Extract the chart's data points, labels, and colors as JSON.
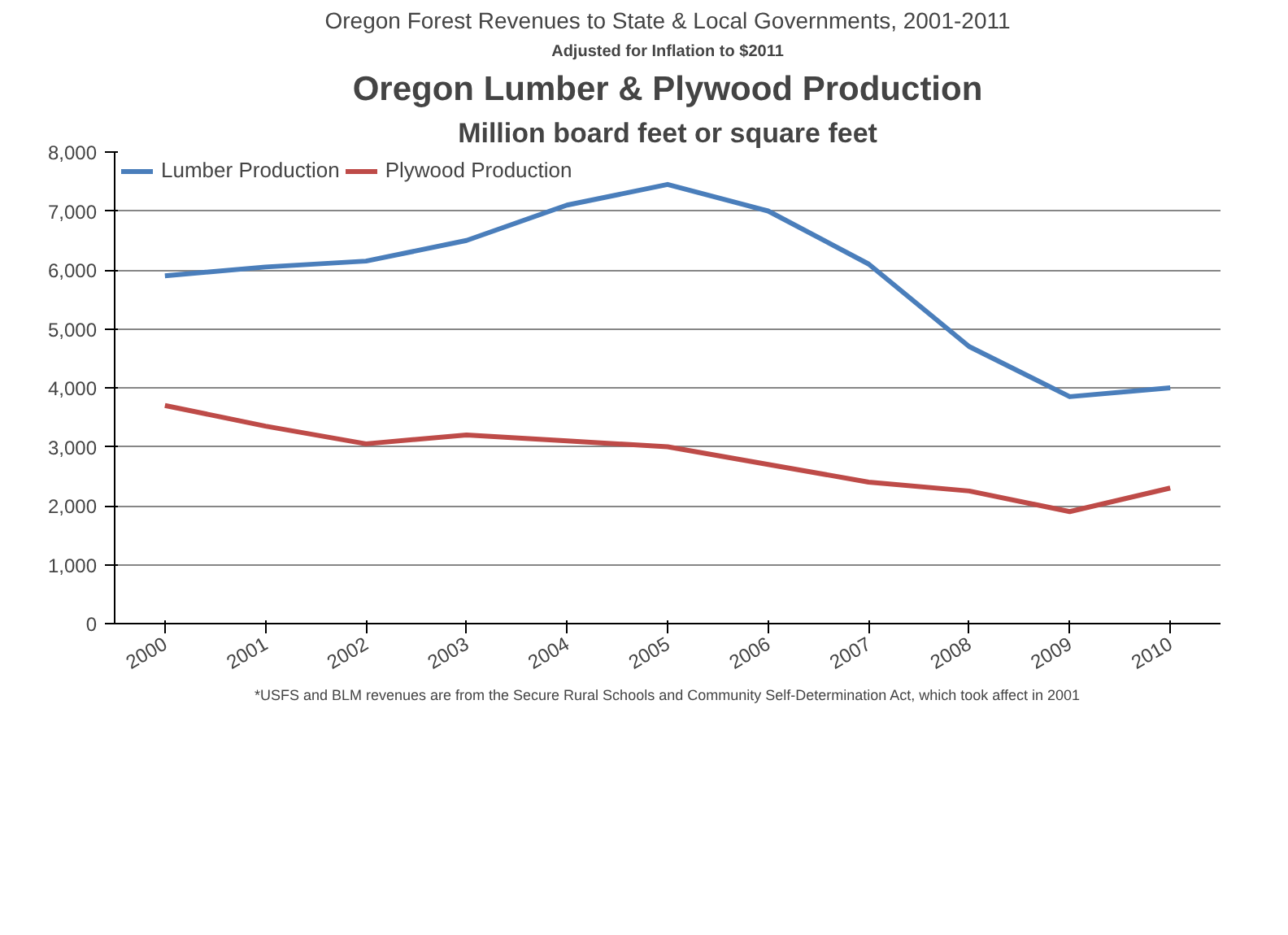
{
  "chart_data": {
    "type": "line",
    "title": "Oregon Lumber & Plywood Production",
    "subtitle": "Million board feet or square feet",
    "categories": [
      "2000",
      "2001",
      "2002",
      "2003",
      "2004",
      "2005",
      "2006",
      "2007",
      "2008",
      "2009",
      "2010"
    ],
    "series": [
      {
        "name": "Lumber Production",
        "color": "#4a7ebb",
        "values": [
          5900,
          6050,
          6150,
          6500,
          7100,
          7450,
          7000,
          6100,
          4700,
          3850,
          4000
        ]
      },
      {
        "name": "Plywood Production",
        "color": "#be4b48",
        "values": [
          3700,
          3350,
          3050,
          3200,
          3100,
          3000,
          2700,
          2400,
          2250,
          1900,
          2300
        ]
      }
    ],
    "ylim": [
      0,
      8000
    ],
    "yticks": [
      0,
      {
        "value": 1000,
        "label": "1,000"
      },
      {
        "value": 2000,
        "label": "2,000"
      },
      {
        "value": 3000,
        "label": "3,000"
      },
      {
        "value": 4000,
        "label": "4,000"
      },
      {
        "value": 5000,
        "label": "5,000"
      },
      {
        "value": 6000,
        "label": "6,000"
      },
      {
        "value": 7000,
        "label": "7,000"
      },
      {
        "value": 8000,
        "label": "8,000"
      }
    ],
    "grid": "y",
    "legend": "top",
    "marker": "none",
    "line_style": "solid",
    "annotations": [
      "Oregon Forest Revenues to State & Local Governments, 2001-2011",
      "Adjusted for Inflation to $2011",
      "*USFS and BLM revenues are from the Secure Rural Schools and Community Self-Determination Act, which took affect in 2001"
    ]
  }
}
